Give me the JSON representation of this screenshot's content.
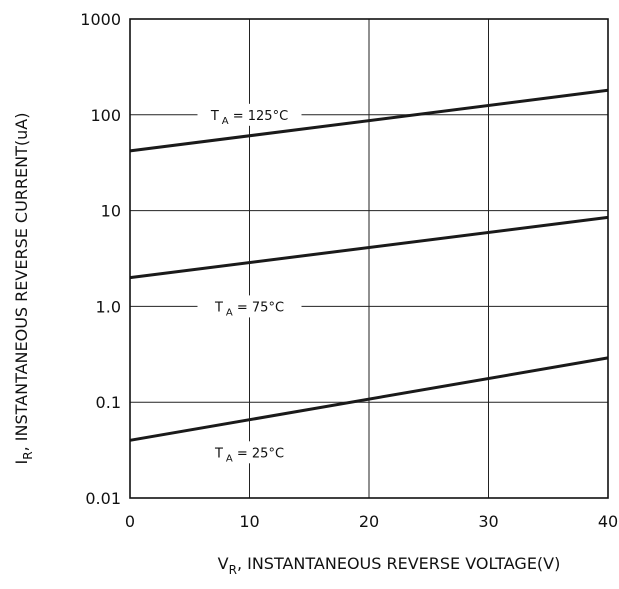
{
  "chart_data": {
    "type": "line",
    "title": "",
    "xlabel": {
      "main": "V",
      "sub": "R",
      "rest": ", INSTANTANEOUS  REVERSE  VOLTAGE(V)"
    },
    "ylabel": {
      "main": "I",
      "sub": "R",
      "rest": ", INSTANTANEOUS   REVERSE   CURRENT(uA)"
    },
    "xlim": [
      0,
      40
    ],
    "ylim": [
      0.01,
      1000
    ],
    "yscale": "log",
    "grid": true,
    "legend": "none",
    "x_ticks": [
      {
        "value": 0,
        "label": "0"
      },
      {
        "value": 10,
        "label": "10"
      },
      {
        "value": 20,
        "label": "20"
      },
      {
        "value": 30,
        "label": "30"
      },
      {
        "value": 40,
        "label": "40"
      }
    ],
    "y_ticks": [
      {
        "value": 0.01,
        "label": "0.01"
      },
      {
        "value": 0.1,
        "label": "0.1"
      },
      {
        "value": 1,
        "label": "1.0"
      },
      {
        "value": 10,
        "label": "10"
      },
      {
        "value": 100,
        "label": "100"
      },
      {
        "value": 1000,
        "label": "1000"
      }
    ],
    "series": [
      {
        "x": [
          0,
          40
        ],
        "y": [
          42,
          180
        ],
        "annotation": {
          "main": "T",
          "sub": "A",
          "rest": " = 125°C",
          "x": 10,
          "y": 100
        }
      },
      {
        "x": [
          0,
          40
        ],
        "y": [
          2.0,
          8.5
        ],
        "annotation": {
          "main": "T",
          "sub": "A",
          "rest": " = 75°C",
          "x": 10,
          "y": 1.0
        }
      },
      {
        "x": [
          0,
          40
        ],
        "y": [
          0.04,
          0.29
        ],
        "annotation": {
          "main": "T",
          "sub": "A",
          "rest": " = 25°C",
          "x": 10,
          "y": 0.03
        }
      }
    ]
  }
}
